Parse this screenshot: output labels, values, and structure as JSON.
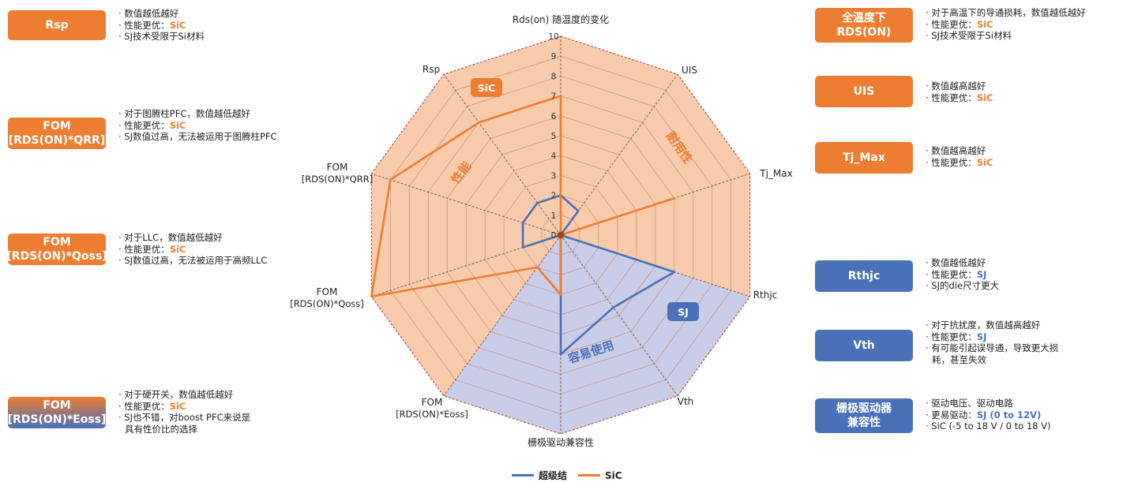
{
  "colors": {
    "sic": "#ED7D31",
    "sj": "#4A72B8",
    "sic_fill": "#F8CBAD",
    "sj_fill": "#C9CDE8",
    "grid": "#C0876B"
  },
  "chart_data": {
    "type": "radar",
    "title": "Rds(on) 随温度的变化",
    "rlim": [
      0,
      10
    ],
    "ticks": [
      "0",
      "1",
      "2",
      "3",
      "4",
      "5",
      "6",
      "7",
      "8",
      "9",
      "10"
    ],
    "axes": [
      {
        "main": "Rds(on) 随温度的变化",
        "sub": ""
      },
      {
        "main": "UIS",
        "sub": ""
      },
      {
        "main": "Tj_Max",
        "sub": ""
      },
      {
        "main": "Rthjc",
        "sub": ""
      },
      {
        "main": "Vth",
        "sub": ""
      },
      {
        "main": "栅极驱动兼容性",
        "sub": ""
      },
      {
        "main": "FOM",
        "sub": "[RDS(ON)*Eoss]"
      },
      {
        "main": "FOM",
        "sub": "[RDS(ON)*Qoss]"
      },
      {
        "main": "FOM",
        "sub": "[RDS(ON)*QRR]"
      },
      {
        "main": "Rsp",
        "sub": ""
      }
    ],
    "series": [
      {
        "name": "超级结",
        "values": [
          2,
          1.5,
          0,
          6,
          4.5,
          6,
          0,
          2,
          2,
          2
        ]
      },
      {
        "name": "SiC",
        "values": [
          7,
          0,
          6,
          0,
          0,
          3,
          2,
          10,
          9,
          7
        ]
      }
    ],
    "regions": [
      {
        "label": "性能"
      },
      {
        "label": "耐用性"
      },
      {
        "label": "容易使用"
      }
    ],
    "badges": {
      "sic": "SiC",
      "sj": "SJ"
    },
    "legend": [
      "超级结",
      "SiC"
    ]
  },
  "left_panel": [
    {
      "box": [
        "Rsp"
      ],
      "notes": [
        "· 数值越低越好",
        "· 性能更优：SiC",
        "· SJ技术受限于Si材料"
      ]
    },
    {
      "box": [
        "FOM",
        "[RDS(ON)*QRR]"
      ],
      "notes": [
        "· 对于图腾柱PFC，数值越低越好",
        "· 性能更优：SiC",
        "· SJ数值过高，无法被运用于图腾柱PFC"
      ]
    },
    {
      "box": [
        "FOM",
        "[RDS(ON)*Qoss]"
      ],
      "notes": [
        "· 对于LLC，数值越低越好",
        "· 性能更优：SiC",
        "· SJ数值过高，无法被运用于高频LLC"
      ]
    },
    {
      "box": [
        "FOM",
        "[RDS(ON)*Eoss]"
      ],
      "notes": [
        "· 对于硬开关，数值越低越好",
        "· 性能更优：SiC",
        "· SJ也不错，对boost PFC来说是",
        "  具有性价比的选择"
      ]
    }
  ],
  "right_panel": [
    {
      "box": [
        "全温度下",
        "RDS(ON)"
      ],
      "notes": [
        "· 对于高温下的导通损耗，数值越低越好",
        "· 性能更优：SiC",
        "· SJ技术受限于Si材料"
      ]
    },
    {
      "box": [
        "UIS"
      ],
      "notes": [
        "· 数值越高越好",
        "· 性能更优：SiC"
      ]
    },
    {
      "box": [
        "Tj_Max"
      ],
      "notes": [
        "· 数值越高越好",
        "· 性能更优：SiC"
      ]
    },
    {
      "box": [
        "Rthjc"
      ],
      "notes": [
        "· 数值越低越好",
        "· 性能更优：SJ",
        "· SJ的die尺寸更大"
      ]
    },
    {
      "box": [
        "Vth"
      ],
      "notes": [
        "· 对于抗扰度，数值越高越好",
        "· 性能更优：SJ",
        "· 有可能引起误导通，导致更大损",
        "  耗，甚至失效"
      ]
    },
    {
      "box": [
        "栅极驱动器",
        "兼容性"
      ],
      "notes": [
        "· 驱动电压、驱动电路",
        "· 更易驱动：SJ (0 to 12V)",
        "· SiC (-5 to 18 V / 0 to 18 V)"
      ]
    }
  ]
}
